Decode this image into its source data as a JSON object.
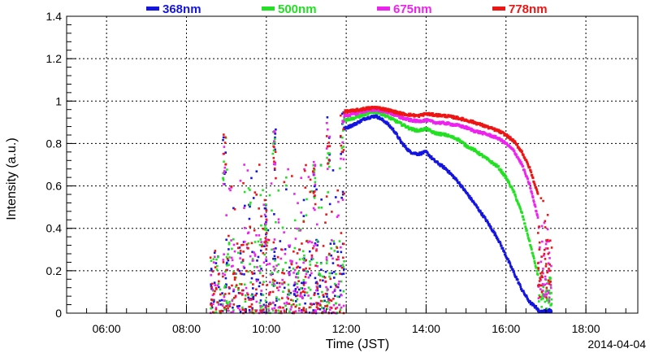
{
  "chart_data": {
    "type": "scatter",
    "title": "",
    "xlabel": "Time (JST)",
    "ylabel": "Intensity (a.u.)",
    "date_label": "2014-04-04",
    "x_unit": "hour",
    "xlim": [
      5.0,
      19.3
    ],
    "ylim": [
      0,
      1.4
    ],
    "x_ticks": [
      {
        "value": 6,
        "label": "06:00"
      },
      {
        "value": 8,
        "label": "08:00"
      },
      {
        "value": 10,
        "label": "10:00"
      },
      {
        "value": 12,
        "label": "12:00"
      },
      {
        "value": 14,
        "label": "14:00"
      },
      {
        "value": 16,
        "label": "16:00"
      },
      {
        "value": 18,
        "label": "18:00"
      }
    ],
    "y_ticks": [
      {
        "value": 0,
        "label": "0"
      },
      {
        "value": 0.2,
        "label": "0.2"
      },
      {
        "value": 0.4,
        "label": "0.4"
      },
      {
        "value": 0.6,
        "label": "0.6"
      },
      {
        "value": 0.8,
        "label": "0.8"
      },
      {
        "value": 1.0,
        "label": "1"
      },
      {
        "value": 1.2,
        "label": "1.2"
      },
      {
        "value": 1.4,
        "label": "1.4"
      }
    ],
    "grid": true,
    "legend_position": "top",
    "cloudy_period": [
      8.6,
      11.95
    ],
    "spikes": [
      [
        8.95,
        0.85
      ],
      [
        10.2,
        0.92
      ],
      [
        11.55,
        0.93
      ],
      [
        11.9,
        0.95
      ],
      [
        10.0,
        0.55
      ],
      [
        11.2,
        0.72
      ]
    ],
    "series": [
      {
        "name": "368nm",
        "color": "#1515e0",
        "x": [
          11.95,
          12.2,
          12.5,
          12.75,
          13.0,
          13.2,
          13.4,
          13.6,
          13.8,
          14.0,
          14.2,
          14.5,
          14.8,
          15.0,
          15.2,
          15.5,
          15.8,
          16.0,
          16.2,
          16.4,
          16.6,
          16.8
        ],
        "y": [
          0.87,
          0.89,
          0.92,
          0.93,
          0.9,
          0.86,
          0.8,
          0.76,
          0.75,
          0.76,
          0.72,
          0.68,
          0.62,
          0.57,
          0.52,
          0.44,
          0.35,
          0.27,
          0.19,
          0.11,
          0.05,
          0.02
        ]
      },
      {
        "name": "500nm",
        "color": "#22e022",
        "x": [
          11.95,
          12.2,
          12.5,
          12.75,
          13.0,
          13.2,
          13.4,
          13.6,
          13.8,
          14.0,
          14.2,
          14.5,
          14.8,
          15.0,
          15.2,
          15.5,
          15.8,
          16.0,
          16.2,
          16.4,
          16.6,
          16.8
        ],
        "y": [
          0.91,
          0.92,
          0.94,
          0.95,
          0.93,
          0.91,
          0.89,
          0.87,
          0.86,
          0.87,
          0.85,
          0.84,
          0.82,
          0.79,
          0.77,
          0.73,
          0.69,
          0.64,
          0.57,
          0.47,
          0.33,
          0.18
        ]
      },
      {
        "name": "675nm",
        "color": "#ee22ee",
        "x": [
          11.95,
          12.2,
          12.5,
          12.75,
          13.0,
          13.2,
          13.4,
          13.6,
          13.8,
          14.0,
          14.2,
          14.5,
          14.8,
          15.0,
          15.2,
          15.5,
          15.8,
          16.0,
          16.2,
          16.4,
          16.6,
          16.8
        ],
        "y": [
          0.93,
          0.94,
          0.955,
          0.96,
          0.95,
          0.935,
          0.92,
          0.91,
          0.905,
          0.91,
          0.9,
          0.895,
          0.885,
          0.875,
          0.86,
          0.845,
          0.825,
          0.8,
          0.765,
          0.7,
          0.6,
          0.45
        ]
      },
      {
        "name": "778nm",
        "color": "#ee1515",
        "x": [
          11.95,
          12.2,
          12.5,
          12.75,
          13.0,
          13.2,
          13.4,
          13.6,
          13.8,
          14.0,
          14.2,
          14.5,
          14.8,
          15.0,
          15.2,
          15.5,
          15.8,
          16.0,
          16.2,
          16.4,
          16.6,
          16.8
        ],
        "y": [
          0.95,
          0.955,
          0.965,
          0.97,
          0.96,
          0.95,
          0.94,
          0.935,
          0.93,
          0.94,
          0.935,
          0.93,
          0.92,
          0.91,
          0.9,
          0.88,
          0.86,
          0.84,
          0.81,
          0.76,
          0.68,
          0.56
        ]
      }
    ]
  }
}
